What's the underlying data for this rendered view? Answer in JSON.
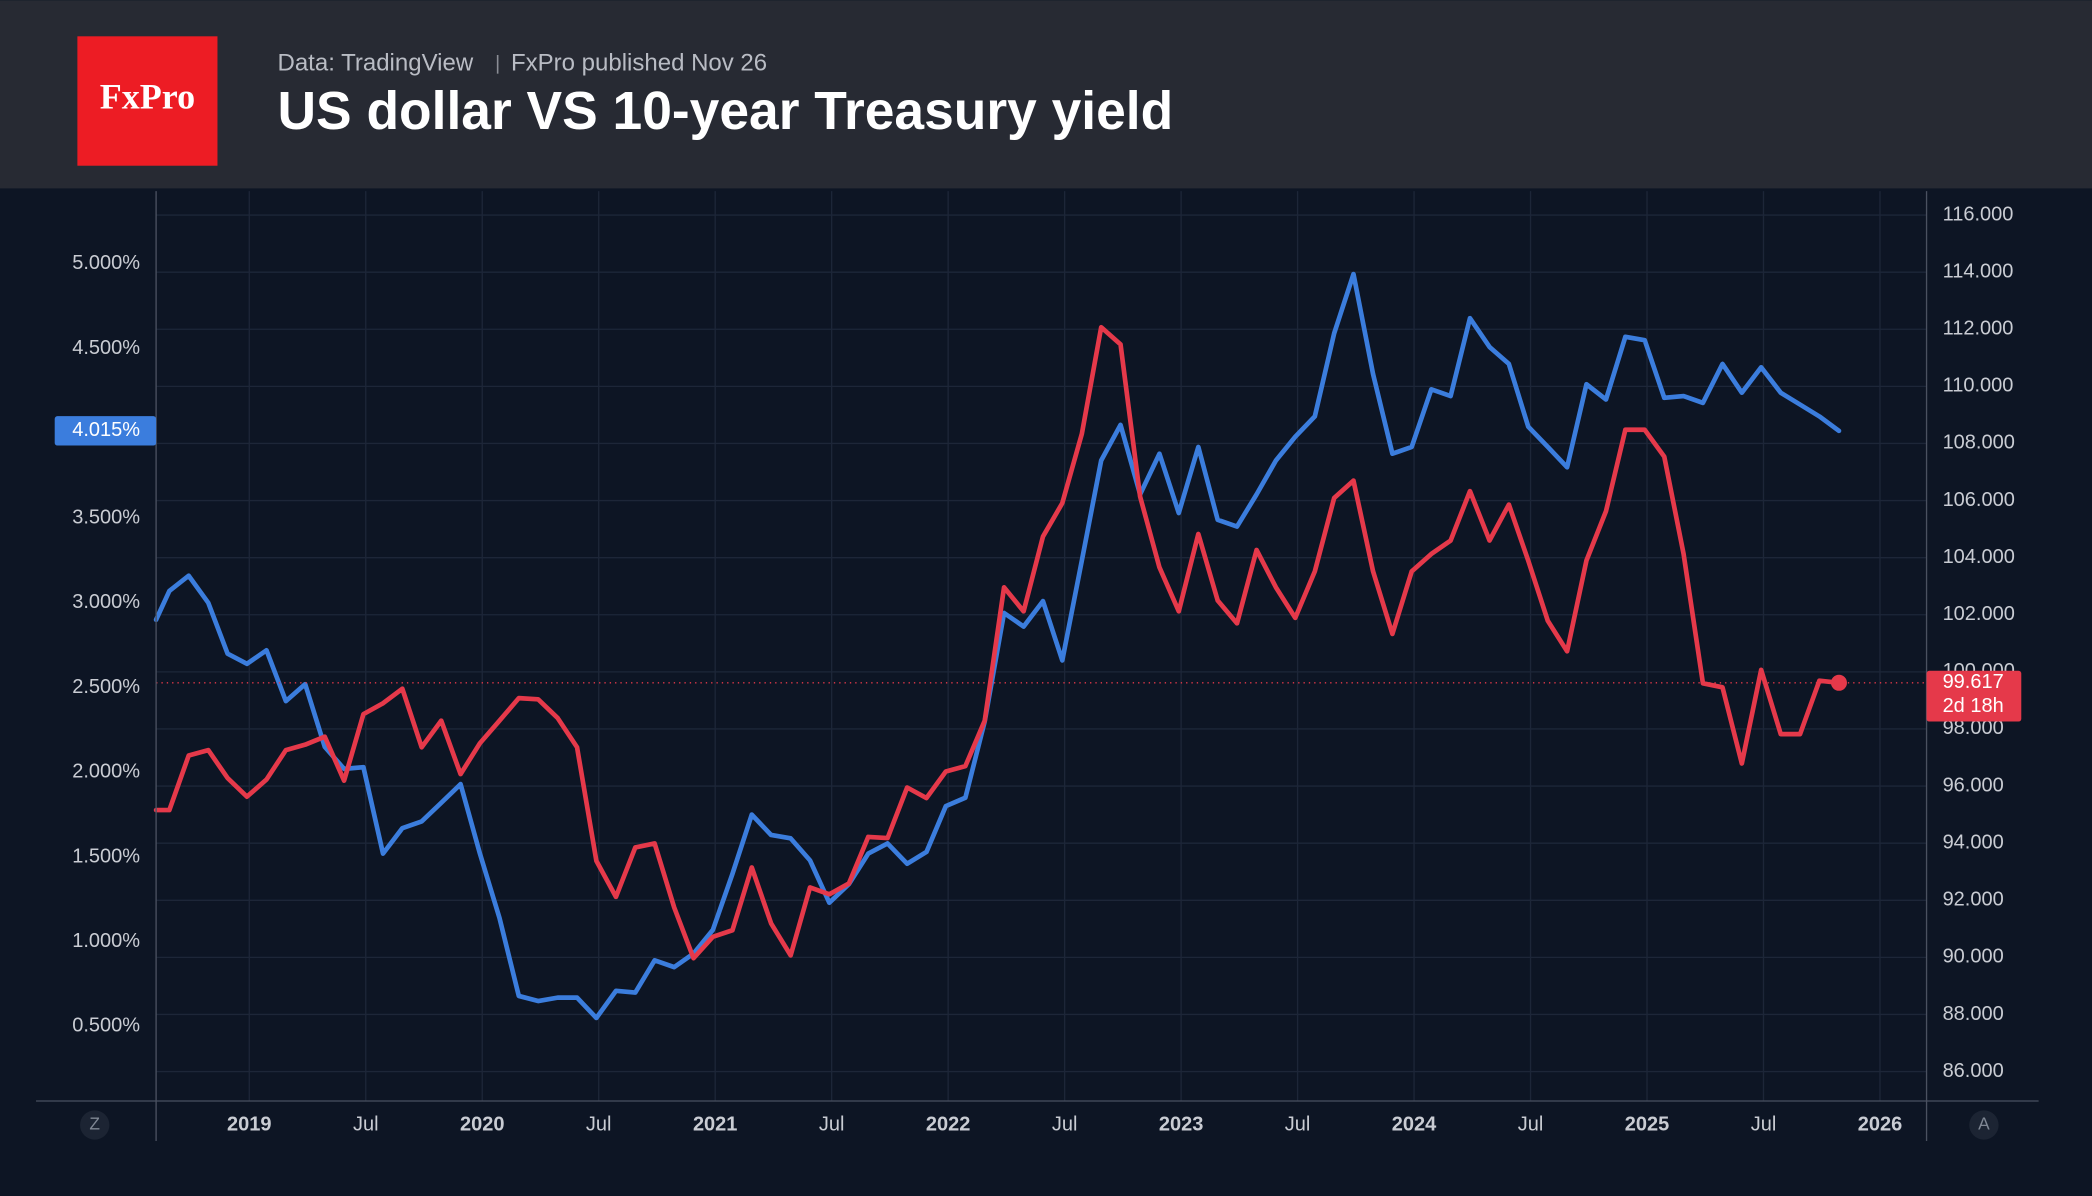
{
  "header": {
    "logo": "FxPro",
    "source": "Data: TradingView",
    "published": "FxPro published Nov 26"
  },
  "controls": {
    "left": "Z",
    "right": "A"
  },
  "chart_data": {
    "type": "line",
    "title": "US dollar VS 10-year Treasury yield",
    "x": [
      2018.6,
      2018.657,
      2018.74,
      2018.824,
      2018.907,
      2018.99,
      2019.074,
      2019.157,
      2019.24,
      2019.324,
      2019.407,
      2019.49,
      2019.574,
      2019.657,
      2019.74,
      2019.824,
      2019.907,
      2019.99,
      2020.074,
      2020.157,
      2020.24,
      2020.324,
      2020.407,
      2020.49,
      2020.574,
      2020.657,
      2020.74,
      2020.824,
      2020.907,
      2020.99,
      2021.074,
      2021.157,
      2021.24,
      2021.324,
      2021.407,
      2021.49,
      2021.574,
      2021.657,
      2021.74,
      2021.824,
      2021.907,
      2021.99,
      2022.074,
      2022.157,
      2022.24,
      2022.324,
      2022.407,
      2022.49,
      2022.574,
      2022.657,
      2022.74,
      2022.824,
      2022.907,
      2022.99,
      2023.074,
      2023.157,
      2023.24,
      2023.324,
      2023.407,
      2023.49,
      2023.574,
      2023.657,
      2023.74,
      2023.824,
      2023.907,
      2023.99,
      2024.074,
      2024.157,
      2024.24,
      2024.324,
      2024.407,
      2024.49,
      2024.574,
      2024.657,
      2024.74,
      2024.824,
      2024.907,
      2024.99,
      2025.074,
      2025.157,
      2025.24,
      2025.324,
      2025.407,
      2025.49,
      2025.574,
      2025.657,
      2025.74,
      2025.824
    ],
    "series": [
      {
        "color": "#3b7ddd",
        "axis": "y",
        "values": [
          2.9,
          3.07,
          3.16,
          3.0,
          2.7,
          2.64,
          2.72,
          2.42,
          2.52,
          2.15,
          2.02,
          2.03,
          1.52,
          1.67,
          1.71,
          1.82,
          1.93,
          1.52,
          1.14,
          0.68,
          0.65,
          0.67,
          0.67,
          0.55,
          0.71,
          0.7,
          0.89,
          0.85,
          0.93,
          1.07,
          1.4,
          1.75,
          1.63,
          1.61,
          1.48,
          1.23,
          1.34,
          1.52,
          1.58,
          1.46,
          1.53,
          1.8,
          1.85,
          2.3,
          2.94,
          2.86,
          3.01,
          2.66,
          3.25,
          3.84,
          4.05,
          3.64,
          3.88,
          3.53,
          3.92,
          3.49,
          3.45,
          3.64,
          3.84,
          3.98,
          4.1,
          4.59,
          4.94,
          4.35,
          3.88,
          3.92,
          4.26,
          4.22,
          4.68,
          4.51,
          4.41,
          4.04,
          3.92,
          3.8,
          4.29,
          4.2,
          4.57,
          4.55,
          4.21,
          4.22,
          4.18,
          4.41,
          4.24,
          4.39,
          4.24,
          4.17,
          4.1,
          4.015
        ]
      },
      {
        "color": "#e5394a",
        "axis": "y2",
        "values": [
          95.16,
          95.16,
          97.07,
          97.26,
          96.28,
          95.63,
          96.23,
          97.26,
          97.45,
          97.73,
          96.19,
          98.52,
          98.9,
          99.41,
          97.36,
          98.29,
          96.42,
          97.5,
          98.29,
          99.08,
          99.04,
          98.38,
          97.36,
          93.38,
          92.12,
          93.85,
          93.99,
          91.75,
          89.97,
          90.72,
          90.95,
          93.15,
          91.19,
          90.07,
          92.45,
          92.21,
          92.59,
          94.22,
          94.18,
          95.95,
          95.58,
          96.51,
          96.7,
          98.29,
          102.96,
          102.12,
          104.74,
          105.91,
          108.34,
          112.07,
          111.47,
          106.14,
          103.66,
          102.12,
          104.83,
          102.5,
          101.7,
          104.27,
          102.96,
          101.89,
          103.52,
          106.09,
          106.7,
          103.52,
          101.33,
          103.52,
          104.13,
          104.6,
          106.33,
          104.6,
          105.86,
          103.9,
          101.79,
          100.72,
          103.9,
          105.63,
          108.48,
          108.48,
          107.54,
          104.13,
          99.6,
          99.46,
          96.79,
          100.07,
          97.82,
          97.82,
          99.69,
          99.617
        ]
      }
    ],
    "last_labels": [
      {
        "axis": "y",
        "value": 4.015,
        "label": "4.015%"
      },
      {
        "axis": "y2",
        "value": 99.617,
        "label": "99.617",
        "countdown": "2d 18h"
      }
    ],
    "xlim": [
      2018.6,
      2026.2
    ],
    "xticks": [
      {
        "value": 2019,
        "label": "2019"
      },
      {
        "value": 2019.5,
        "label": "Jul"
      },
      {
        "value": 2020,
        "label": "2020"
      },
      {
        "value": 2020.5,
        "label": "Jul"
      },
      {
        "value": 2021,
        "label": "2021"
      },
      {
        "value": 2021.5,
        "label": "Jul"
      },
      {
        "value": 2022,
        "label": "2022"
      },
      {
        "value": 2022.5,
        "label": "Jul"
      },
      {
        "value": 2023,
        "label": "2023"
      },
      {
        "value": 2023.5,
        "label": "Jul"
      },
      {
        "value": 2024,
        "label": "2024"
      },
      {
        "value": 2024.5,
        "label": "Jul"
      },
      {
        "value": 2025,
        "label": "2025"
      },
      {
        "value": 2025.5,
        "label": "Jul"
      },
      {
        "value": 2026,
        "label": "2026"
      }
    ],
    "ylim": [
      0.06,
      5.43
    ],
    "yticks": [
      {
        "value": 0.5,
        "label": "0.500%"
      },
      {
        "value": 1.0,
        "label": "1.000%"
      },
      {
        "value": 1.5,
        "label": "1.500%"
      },
      {
        "value": 2.0,
        "label": "2.000%"
      },
      {
        "value": 2.5,
        "label": "2.500%"
      },
      {
        "value": 3.0,
        "label": "3.000%"
      },
      {
        "value": 3.5,
        "label": "3.500%"
      },
      {
        "value": 4.5,
        "label": "4.500%"
      },
      {
        "value": 5.0,
        "label": "5.000%"
      }
    ],
    "y2lim": [
      84.97,
      116.84
    ],
    "y2ticks": [
      {
        "value": 86,
        "label": "86.000"
      },
      {
        "value": 88,
        "label": "88.000"
      },
      {
        "value": 90,
        "label": "90.000"
      },
      {
        "value": 92,
        "label": "92.000"
      },
      {
        "value": 94,
        "label": "94.000"
      },
      {
        "value": 96,
        "label": "96.000"
      },
      {
        "value": 98,
        "label": "98.000"
      },
      {
        "value": 100,
        "label": "100.000"
      },
      {
        "value": 102,
        "label": "102.000"
      },
      {
        "value": 104,
        "label": "104.000"
      },
      {
        "value": 106,
        "label": "106.000"
      },
      {
        "value": 108,
        "label": "108.000"
      },
      {
        "value": 110,
        "label": "110.000"
      },
      {
        "value": 112,
        "label": "112.000"
      },
      {
        "value": 114,
        "label": "114.000"
      },
      {
        "value": 116,
        "label": "116.000"
      }
    ],
    "grid": true
  }
}
